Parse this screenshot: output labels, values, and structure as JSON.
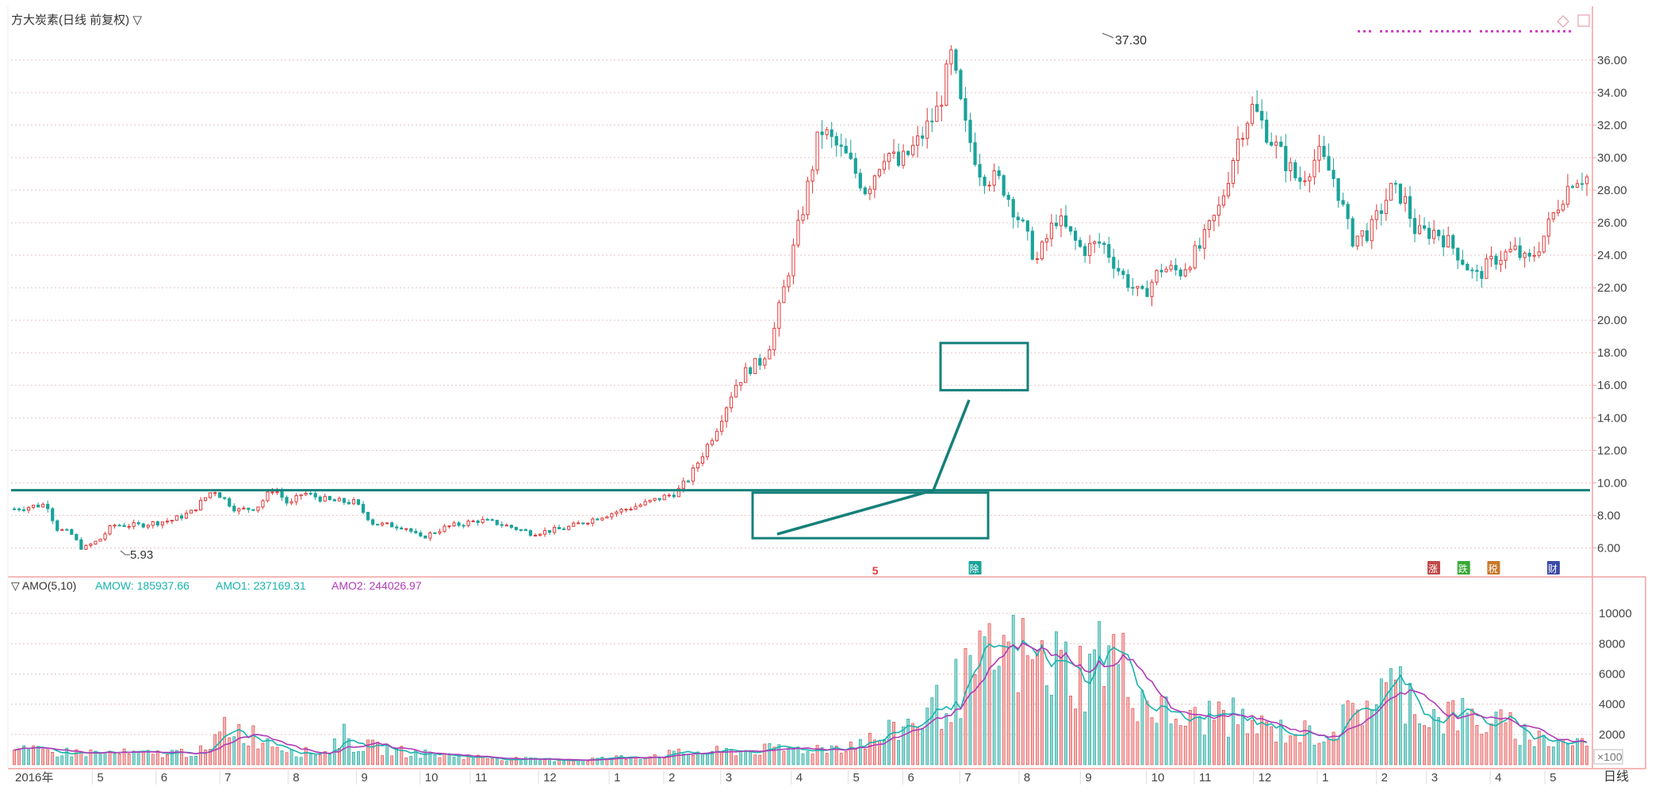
{
  "header": {
    "title": "方大炭素(日线 前复权) ▽"
  },
  "indicator": {
    "name": "▽ AMO(5,10)",
    "amow_label": "AMOW: 185937.66",
    "amo1_label": "AMO1: 237169.31",
    "amo2_label": "AMO2: 244026.97"
  },
  "period_button": "日线",
  "colors": {
    "up": "#e03a3a",
    "down": "#1aa39a",
    "ma_fast": "#17b3ad",
    "ma_slow": "#b03ab8",
    "drawing": "#15807a",
    "axis": "#f0a0a0",
    "grid": "#e4c4c4",
    "text": "#444444"
  },
  "chart_data": [
    {
      "type": "candlestick",
      "name": "price",
      "y_ticks": [
        "6.00",
        "8.00",
        "10.00",
        "12.00",
        "14.00",
        "16.00",
        "18.00",
        "20.00",
        "22.00",
        "24.00",
        "26.00",
        "28.00",
        "30.00",
        "32.00",
        "34.00",
        "36.00"
      ],
      "ylim": [
        5,
        37.5
      ],
      "x_ticks": [
        "2016年",
        "5",
        "6",
        "7",
        "8",
        "9",
        "10",
        "11",
        "12",
        "1",
        "2",
        "3",
        "4",
        "5",
        "6",
        "7",
        "8",
        "9",
        "10",
        "11",
        "12",
        "1",
        "2",
        "3",
        "4",
        "5"
      ],
      "annotations": {
        "high": "37.30",
        "low": "5.93"
      },
      "event_markers": [
        {
          "x_index": 26,
          "label": "5",
          "color": "#e03a3a"
        },
        {
          "x_index": 29,
          "label": "除",
          "color": "#1aa39a"
        },
        {
          "x_index": 42.8,
          "label": "涨",
          "color": "#c04848"
        },
        {
          "x_index": 43.7,
          "label": "跌",
          "color": "#38a838"
        },
        {
          "x_index": 44.6,
          "label": "税",
          "color": "#c87828"
        },
        {
          "x_index": 46.4,
          "label": "财",
          "color": "#3a4aa8"
        }
      ],
      "anchors": [
        [
          0,
          8.4
        ],
        [
          2.5,
          8.7
        ],
        [
          3.2,
          7.2
        ],
        [
          4.3,
          6.9
        ],
        [
          5.2,
          5.93
        ],
        [
          6.5,
          6.5
        ],
        [
          7.5,
          7.4
        ],
        [
          9.5,
          7.4
        ],
        [
          12,
          7.7
        ],
        [
          13.5,
          8.2
        ],
        [
          15.2,
          9.6
        ],
        [
          17,
          8.3
        ],
        [
          18.5,
          8.5
        ],
        [
          19.8,
          9.7
        ],
        [
          21,
          8.6
        ],
        [
          22,
          9.4
        ],
        [
          24,
          8.9
        ],
        [
          26,
          8.8
        ],
        [
          27.4,
          7.5
        ],
        [
          29.8,
          7.3
        ],
        [
          31,
          6.6
        ],
        [
          33,
          7.3
        ],
        [
          35.5,
          7.7
        ],
        [
          37,
          7.5
        ],
        [
          39.5,
          6.9
        ],
        [
          42,
          7.2
        ],
        [
          45,
          8.0
        ],
        [
          48,
          8.7
        ],
        [
          50.5,
          9.4
        ],
        [
          51.5,
          10.3
        ],
        [
          53.5,
          13.2
        ],
        [
          55,
          16.0
        ],
        [
          56,
          17.0
        ],
        [
          57,
          17.5
        ],
        [
          57.8,
          18.8
        ],
        [
          59.5,
          24.5
        ],
        [
          60.5,
          28.0
        ],
        [
          61.5,
          31.8
        ],
        [
          63.5,
          30.0
        ],
        [
          65,
          28.0
        ],
        [
          66.5,
          30.5
        ],
        [
          67.5,
          29.5
        ],
        [
          69,
          31.0
        ],
        [
          70.5,
          33.0
        ],
        [
          71.5,
          36.2
        ],
        [
          72.5,
          32.0
        ],
        [
          73.8,
          29.0
        ],
        [
          75.3,
          28.5
        ],
        [
          76.8,
          26.0
        ],
        [
          78,
          23.6
        ],
        [
          79.5,
          26.3
        ],
        [
          81.5,
          24.3
        ],
        [
          83,
          24.8
        ],
        [
          84.5,
          22.8
        ],
        [
          86,
          21.4
        ],
        [
          87.5,
          23.2
        ],
        [
          89,
          23.0
        ],
        [
          90.5,
          24.5
        ],
        [
          92,
          27.0
        ],
        [
          93.5,
          31.5
        ],
        [
          94.5,
          33.1
        ],
        [
          96,
          31.0
        ],
        [
          98,
          28.5
        ],
        [
          99.5,
          30.2
        ],
        [
          100.8,
          28.6
        ],
        [
          102,
          25.0
        ],
        [
          103.5,
          25.5
        ],
        [
          105,
          28.0
        ],
        [
          106,
          27.6
        ],
        [
          107,
          25.3
        ],
        [
          108.5,
          25.5
        ],
        [
          110,
          24.3
        ],
        [
          111.5,
          22.6
        ],
        [
          113,
          23.8
        ],
        [
          114.5,
          24.3
        ],
        [
          115.5,
          23.5
        ],
        [
          116.5,
          24.8
        ],
        [
          118,
          27.5
        ],
        [
          119,
          28.8
        ],
        [
          120,
          28.8
        ]
      ]
    },
    {
      "type": "bar",
      "name": "AMO",
      "unit_label": "×100",
      "y_ticks": [
        "2000",
        "4000",
        "6000",
        "8000",
        "10000"
      ],
      "ylim": [
        0,
        11000
      ],
      "anchors": [
        [
          0,
          900
        ],
        [
          10,
          700
        ],
        [
          15,
          900
        ],
        [
          16,
          2600
        ],
        [
          19,
          1700
        ],
        [
          22,
          800
        ],
        [
          23.8,
          800
        ],
        [
          25,
          2000
        ],
        [
          26,
          1300
        ],
        [
          30,
          800
        ],
        [
          35,
          500
        ],
        [
          40,
          300
        ],
        [
          45,
          400
        ],
        [
          50,
          700
        ],
        [
          55,
          900
        ],
        [
          62,
          1100
        ],
        [
          66,
          1700
        ],
        [
          70,
          3500
        ],
        [
          72,
          5000
        ],
        [
          74,
          6500
        ],
        [
          76,
          7500
        ],
        [
          78,
          6600
        ],
        [
          80,
          6600
        ],
        [
          82,
          5800
        ],
        [
          83,
          8000
        ],
        [
          84.5,
          6500
        ],
        [
          86,
          4500
        ],
        [
          88,
          3200
        ],
        [
          90,
          2800
        ],
        [
          92,
          3500
        ],
        [
          94,
          2600
        ],
        [
          96,
          2300
        ],
        [
          98,
          2100
        ],
        [
          100,
          2000
        ],
        [
          102,
          3200
        ],
        [
          104,
          4800
        ],
        [
          106,
          5000
        ],
        [
          108,
          3200
        ],
        [
          110,
          3300
        ],
        [
          112,
          2800
        ],
        [
          114,
          2500
        ],
        [
          116,
          1800
        ],
        [
          118,
          1500
        ],
        [
          120,
          1500
        ],
        [
          122,
          3000
        ]
      ]
    }
  ]
}
